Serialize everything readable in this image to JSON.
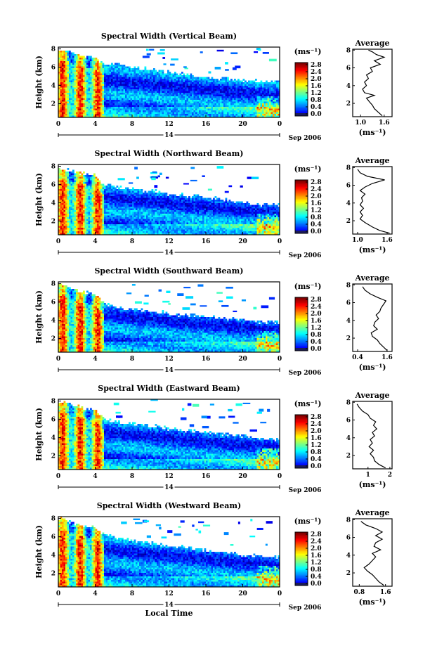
{
  "chart_data": [
    {
      "type": "heatmap",
      "title": "Spectral Width (Vertical Beam)",
      "ylabel": "Height (km)",
      "xticks": [
        "0",
        "4",
        "8",
        "12",
        "16",
        "20",
        "0"
      ],
      "yticks": [
        "2",
        "4",
        "6",
        "8"
      ],
      "date_day": "14",
      "date_label": "Sep 2006",
      "unit": "(ms⁻¹)",
      "colorbar_ticks": [
        "0.0",
        "0.4",
        "0.8",
        "1.2",
        "1.6",
        "2.0",
        "2.4",
        "2.8"
      ],
      "cloud_top_profile": [
        [
          0,
          8.0
        ],
        [
          1,
          7.8
        ],
        [
          2,
          7.4
        ],
        [
          3,
          7.2
        ],
        [
          4,
          7.0
        ],
        [
          5,
          6.3
        ],
        [
          6,
          6.3
        ],
        [
          7,
          6.2
        ],
        [
          8,
          6.0
        ],
        [
          9,
          5.9
        ],
        [
          10,
          5.9
        ],
        [
          11,
          5.6
        ],
        [
          12,
          5.5
        ],
        [
          13,
          5.3
        ],
        [
          14,
          5.2
        ],
        [
          15,
          5.0
        ],
        [
          16,
          5.0
        ],
        [
          17,
          4.8
        ],
        [
          18,
          4.8
        ],
        [
          19,
          4.6
        ],
        [
          20,
          4.6
        ],
        [
          21,
          4.5
        ],
        [
          22,
          4.4
        ],
        [
          23,
          4.5
        ],
        [
          24,
          4.5
        ]
      ],
      "average_panel": {
        "title": "Average",
        "xlabel": "(ms⁻¹)",
        "xticks": [
          "1.0",
          "1.6"
        ],
        "yticks": [
          "2",
          "4",
          "6",
          "8"
        ],
        "xlim": [
          0.8,
          1.8
        ]
      },
      "average_profile": [
        [
          1.55,
          0.6
        ],
        [
          1.45,
          1.0
        ],
        [
          1.35,
          1.4
        ],
        [
          1.3,
          1.8
        ],
        [
          1.22,
          2.2
        ],
        [
          1.15,
          2.6
        ],
        [
          1.35,
          2.9
        ],
        [
          1.1,
          3.2
        ],
        [
          1.05,
          3.6
        ],
        [
          1.15,
          4.0
        ],
        [
          1.1,
          4.4
        ],
        [
          1.2,
          4.8
        ],
        [
          1.15,
          5.2
        ],
        [
          1.3,
          5.6
        ],
        [
          1.25,
          6.0
        ],
        [
          1.5,
          6.4
        ],
        [
          1.35,
          6.8
        ],
        [
          1.6,
          7.2
        ],
        [
          1.4,
          7.5
        ],
        [
          1.3,
          7.8
        ],
        [
          1.2,
          8.0
        ]
      ]
    },
    {
      "type": "heatmap",
      "title": "Spectral Width (Northward Beam)",
      "ylabel": "Height (km)",
      "xticks": [
        "0",
        "4",
        "8",
        "12",
        "16",
        "20",
        "0"
      ],
      "yticks": [
        "2",
        "4",
        "6",
        "8"
      ],
      "date_day": "14",
      "date_label": "Sep 2006",
      "unit": "(ms⁻¹)",
      "colorbar_ticks": [
        "0.0",
        "0.4",
        "0.8",
        "1.2",
        "1.6",
        "2.0",
        "2.4",
        "2.8"
      ],
      "cloud_top_profile": [
        [
          0,
          7.8
        ],
        [
          1,
          7.6
        ],
        [
          2,
          7.3
        ],
        [
          3,
          7.2
        ],
        [
          4,
          7.0
        ],
        [
          5,
          6.0
        ],
        [
          6,
          5.8
        ],
        [
          7,
          5.6
        ],
        [
          8,
          5.5
        ],
        [
          9,
          5.4
        ],
        [
          10,
          5.3
        ],
        [
          11,
          5.2
        ],
        [
          12,
          5.0
        ],
        [
          13,
          4.9
        ],
        [
          14,
          4.8
        ],
        [
          15,
          4.8
        ],
        [
          16,
          4.6
        ],
        [
          17,
          4.5
        ],
        [
          18,
          4.3
        ],
        [
          19,
          4.2
        ],
        [
          20,
          4.0
        ],
        [
          21,
          3.9
        ],
        [
          22,
          3.8
        ],
        [
          23,
          3.8
        ],
        [
          24,
          3.8
        ]
      ],
      "average_panel": {
        "title": "Average",
        "xlabel": "(ms⁻¹)",
        "xticks": [
          "1.0",
          "1.6"
        ],
        "yticks": [
          "2",
          "4",
          "6",
          "8"
        ],
        "xlim": [
          0.9,
          1.7
        ]
      },
      "average_profile": [
        [
          1.65,
          0.6
        ],
        [
          1.45,
          0.9
        ],
        [
          1.3,
          1.3
        ],
        [
          1.15,
          1.8
        ],
        [
          1.05,
          2.2
        ],
        [
          1.1,
          2.6
        ],
        [
          1.05,
          3.0
        ],
        [
          1.12,
          3.4
        ],
        [
          1.05,
          3.8
        ],
        [
          1.1,
          4.2
        ],
        [
          1.08,
          4.6
        ],
        [
          1.15,
          5.0
        ],
        [
          1.05,
          5.4
        ],
        [
          1.15,
          5.8
        ],
        [
          1.3,
          6.2
        ],
        [
          1.55,
          6.6
        ],
        [
          1.2,
          7.0
        ],
        [
          1.05,
          7.4
        ],
        [
          1.0,
          7.8
        ]
      ]
    },
    {
      "type": "heatmap",
      "title": "Spectral Width (Southward Beam)",
      "ylabel": "Height (km)",
      "xticks": [
        "0",
        "4",
        "8",
        "12",
        "16",
        "20",
        "0"
      ],
      "yticks": [
        "2",
        "4",
        "6",
        "8"
      ],
      "date_day": "14",
      "date_label": "Sep 2006",
      "unit": "(ms⁻¹)",
      "colorbar_ticks": [
        "0.0",
        "0.4",
        "0.8",
        "1.2",
        "1.6",
        "2.0",
        "2.4",
        "2.8"
      ],
      "cloud_top_profile": [
        [
          0,
          8.0
        ],
        [
          1,
          7.7
        ],
        [
          2,
          7.3
        ],
        [
          3,
          7.0
        ],
        [
          4,
          6.8
        ],
        [
          5,
          5.8
        ],
        [
          6,
          5.5
        ],
        [
          7,
          5.3
        ],
        [
          8,
          5.2
        ],
        [
          9,
          5.1
        ],
        [
          10,
          5.0
        ],
        [
          11,
          4.9
        ],
        [
          12,
          4.8
        ],
        [
          13,
          4.6
        ],
        [
          14,
          4.6
        ],
        [
          15,
          4.5
        ],
        [
          16,
          4.4
        ],
        [
          17,
          4.3
        ],
        [
          18,
          4.2
        ],
        [
          19,
          4.1
        ],
        [
          20,
          4.0
        ],
        [
          21,
          3.9
        ],
        [
          22,
          3.8
        ],
        [
          23,
          3.8
        ],
        [
          24,
          3.8
        ]
      ],
      "average_panel": {
        "title": "Average",
        "xlabel": "(ms⁻¹)",
        "xticks": [
          "0.4",
          "1.6"
        ],
        "yticks": [
          "2",
          "4",
          "6",
          "8"
        ],
        "xlim": [
          0.2,
          1.8
        ]
      },
      "average_profile": [
        [
          1.6,
          0.6
        ],
        [
          1.45,
          1.0
        ],
        [
          1.3,
          1.4
        ],
        [
          1.2,
          1.8
        ],
        [
          1.0,
          2.2
        ],
        [
          0.95,
          2.6
        ],
        [
          1.2,
          3.0
        ],
        [
          1.05,
          3.4
        ],
        [
          1.1,
          3.8
        ],
        [
          1.25,
          4.2
        ],
        [
          1.15,
          4.6
        ],
        [
          1.3,
          5.0
        ],
        [
          1.35,
          5.4
        ],
        [
          1.45,
          5.8
        ],
        [
          1.55,
          6.2
        ],
        [
          1.2,
          6.6
        ],
        [
          0.9,
          7.0
        ],
        [
          0.7,
          7.4
        ],
        [
          0.6,
          7.8
        ]
      ]
    },
    {
      "type": "heatmap",
      "title": "Spectral Width (Eastward Beam)",
      "ylabel": "Height (km)",
      "xticks": [
        "0",
        "4",
        "8",
        "12",
        "16",
        "20",
        "0"
      ],
      "yticks": [
        "2",
        "4",
        "6",
        "8"
      ],
      "date_day": "14",
      "date_label": "Sep 2006",
      "unit": "(ms⁻¹)",
      "colorbar_ticks": [
        "0.0",
        "0.4",
        "0.8",
        "1.2",
        "1.6",
        "2.0",
        "2.4",
        "2.8"
      ],
      "cloud_top_profile": [
        [
          0,
          8.0
        ],
        [
          1,
          7.8
        ],
        [
          2,
          7.5
        ],
        [
          3,
          7.2
        ],
        [
          4,
          7.0
        ],
        [
          5,
          6.0
        ],
        [
          6,
          5.8
        ],
        [
          7,
          5.6
        ],
        [
          8,
          5.5
        ],
        [
          9,
          5.4
        ],
        [
          10,
          5.3
        ],
        [
          11,
          5.2
        ],
        [
          12,
          5.0
        ],
        [
          13,
          4.9
        ],
        [
          14,
          4.8
        ],
        [
          15,
          4.7
        ],
        [
          16,
          4.6
        ],
        [
          17,
          4.5
        ],
        [
          18,
          4.4
        ],
        [
          19,
          4.3
        ],
        [
          20,
          4.2
        ],
        [
          21,
          4.0
        ],
        [
          22,
          3.9
        ],
        [
          23,
          3.8
        ],
        [
          24,
          3.8
        ]
      ],
      "average_panel": {
        "title": "Average",
        "xlabel": "(ms⁻¹)",
        "xticks": [
          "1",
          "2"
        ],
        "yticks": [
          "2",
          "4",
          "6",
          "8"
        ],
        "xlim": [
          0.3,
          2.1
        ]
      },
      "average_profile": [
        [
          1.8,
          0.6
        ],
        [
          1.5,
          1.0
        ],
        [
          1.3,
          1.4
        ],
        [
          1.25,
          1.8
        ],
        [
          1.1,
          2.2
        ],
        [
          1.25,
          2.6
        ],
        [
          1.05,
          3.0
        ],
        [
          1.2,
          3.4
        ],
        [
          1.1,
          3.8
        ],
        [
          1.3,
          4.2
        ],
        [
          1.2,
          4.6
        ],
        [
          1.4,
          5.0
        ],
        [
          1.25,
          5.4
        ],
        [
          1.35,
          5.8
        ],
        [
          1.1,
          6.2
        ],
        [
          1.0,
          6.6
        ],
        [
          0.75,
          7.0
        ],
        [
          0.6,
          7.4
        ],
        [
          0.5,
          7.8
        ]
      ]
    },
    {
      "type": "heatmap",
      "title": "Spectral Width (Westward Beam)",
      "ylabel": "Height (km)",
      "xlabel": "Local Time",
      "xticks": [
        "0",
        "4",
        "8",
        "12",
        "16",
        "20",
        "0"
      ],
      "yticks": [
        "2",
        "4",
        "6",
        "8"
      ],
      "date_day": "14",
      "date_label": "Sep 2006",
      "unit": "(ms⁻¹)",
      "colorbar_ticks": [
        "0.0",
        "0.4",
        "0.8",
        "1.2",
        "1.6",
        "2.0",
        "2.4",
        "2.8"
      ],
      "cloud_top_profile": [
        [
          0,
          8.0
        ],
        [
          1,
          7.8
        ],
        [
          2,
          7.4
        ],
        [
          3,
          7.2
        ],
        [
          4,
          7.0
        ],
        [
          5,
          6.3
        ],
        [
          6,
          6.0
        ],
        [
          7,
          5.8
        ],
        [
          8,
          5.6
        ],
        [
          9,
          5.5
        ],
        [
          10,
          5.3
        ],
        [
          11,
          5.2
        ],
        [
          12,
          5.0
        ],
        [
          13,
          4.9
        ],
        [
          14,
          4.8
        ],
        [
          15,
          4.7
        ],
        [
          16,
          4.5
        ],
        [
          17,
          4.4
        ],
        [
          18,
          4.3
        ],
        [
          19,
          4.2
        ],
        [
          20,
          4.0
        ],
        [
          21,
          3.9
        ],
        [
          22,
          3.9
        ],
        [
          23,
          3.8
        ],
        [
          24,
          3.8
        ]
      ],
      "average_panel": {
        "title": "Average",
        "xlabel": "(ms⁻¹)",
        "xticks": [
          "0.8",
          "1.6"
        ],
        "yticks": [
          "2",
          "4",
          "6",
          "8"
        ],
        "xlim": [
          0.6,
          1.8
        ]
      },
      "average_profile": [
        [
          1.55,
          0.6
        ],
        [
          1.4,
          1.0
        ],
        [
          1.3,
          1.4
        ],
        [
          1.2,
          1.8
        ],
        [
          1.05,
          2.2
        ],
        [
          0.95,
          2.6
        ],
        [
          1.1,
          3.0
        ],
        [
          1.2,
          3.4
        ],
        [
          1.3,
          3.8
        ],
        [
          1.2,
          4.2
        ],
        [
          1.45,
          4.6
        ],
        [
          1.25,
          5.0
        ],
        [
          1.3,
          5.4
        ],
        [
          1.5,
          5.8
        ],
        [
          1.3,
          6.2
        ],
        [
          1.5,
          6.6
        ],
        [
          1.3,
          7.0
        ],
        [
          1.0,
          7.4
        ],
        [
          0.85,
          7.8
        ]
      ]
    }
  ]
}
